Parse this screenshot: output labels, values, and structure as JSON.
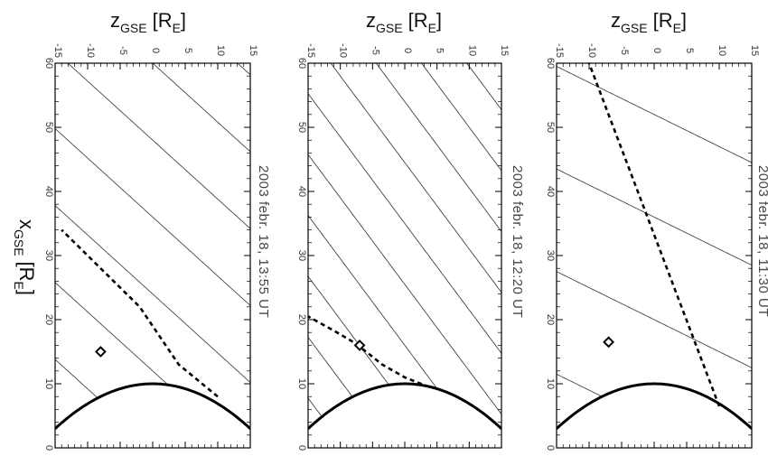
{
  "figure": {
    "x_title": {
      "main": "x",
      "sub": "GSE",
      "unit_open": "[R",
      "unit_sub": "E",
      "unit_close": "]"
    },
    "z_title": {
      "main": "z",
      "sub": "GSE",
      "unit_open": "[R",
      "unit_sub": "E",
      "unit_close": "]"
    }
  },
  "chart_data": [
    {
      "type": "line",
      "annotation": "2003 febr. 18, 11:30 UT",
      "xlim": [
        0,
        60
      ],
      "zlim": [
        -15,
        15
      ],
      "x_ticks": [
        0,
        10,
        20,
        30,
        40,
        50,
        60
      ],
      "z_ticks": [
        -15,
        -10,
        -5,
        0,
        5,
        10,
        15
      ],
      "bow_shock": {
        "nose_x": 10,
        "flank_z": 15,
        "flank_x": 3
      },
      "field_lines": {
        "slope_dx_per_dz": -0.5,
        "spacing_dx": 16
      },
      "boundary": {
        "x": [
          6.5,
          60
        ],
        "z": [
          10,
          -10
        ]
      },
      "marker": {
        "x": 16.5,
        "z": -7
      }
    },
    {
      "type": "line",
      "annotation": "2003 febr. 18, 12:20 UT",
      "xlim": [
        0,
        60
      ],
      "zlim": [
        -15,
        15
      ],
      "x_ticks": [
        0,
        10,
        20,
        30,
        40,
        50,
        60
      ],
      "z_ticks": [
        -15,
        -10,
        -5,
        0,
        5,
        10,
        15
      ],
      "bow_shock": {
        "nose_x": 10,
        "flank_z": 15,
        "flank_x": 3
      },
      "field_lines": {
        "slope_dx_per_dz": -1.35,
        "spacing_dx": 9.5
      },
      "boundary": {
        "x": [
          9.5,
          11,
          13,
          15,
          16.5,
          18,
          20.5
        ],
        "z": [
          3.8,
          0,
          -3.5,
          -6,
          -8,
          -10.5,
          -15
        ]
      },
      "marker": {
        "x": 16,
        "z": -7
      }
    },
    {
      "type": "line",
      "annotation": "2003 febr. 18, 13:55 UT",
      "xlim": [
        0,
        60
      ],
      "zlim": [
        -15,
        15
      ],
      "x_ticks": [
        0,
        10,
        20,
        30,
        40,
        50,
        60
      ],
      "z_ticks": [
        -15,
        -10,
        -5,
        0,
        5,
        10,
        15
      ],
      "bow_shock": {
        "nose_x": 10,
        "flank_z": 15,
        "flank_x": 3
      },
      "field_lines": {
        "slope_dx_per_dz": -0.92,
        "spacing_dx": 12
      },
      "boundary": {
        "x": [
          8,
          13,
          22,
          34
        ],
        "z": [
          10,
          4,
          -2,
          -14
        ]
      },
      "marker": {
        "x": 15,
        "z": -8
      }
    }
  ]
}
